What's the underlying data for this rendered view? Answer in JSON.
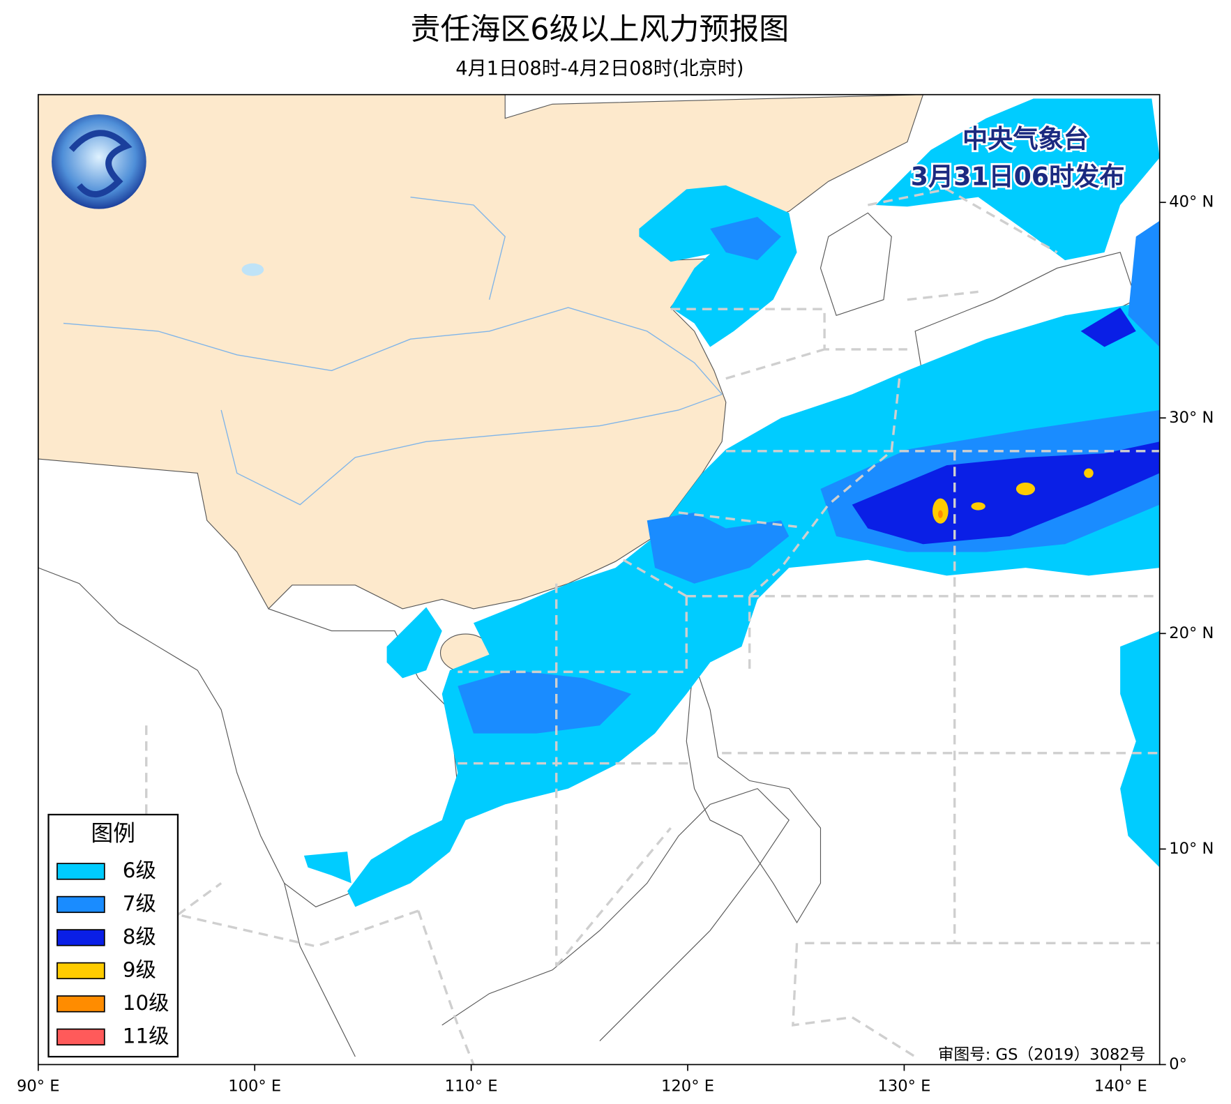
{
  "header": {
    "title": "责任海区6级以上风力预报图",
    "subtitle": "4月1日08时-4月2日08时(北京时)"
  },
  "publisher": {
    "name": "中央气象台",
    "issued": "3月31日06时发布"
  },
  "map": {
    "xlim": [
      90,
      141.8
    ],
    "ylim": [
      0,
      45
    ],
    "xticks": [
      {
        "value": 90,
        "label": "90° E"
      },
      {
        "value": 100,
        "label": "100° E"
      },
      {
        "value": 110,
        "label": "110° E"
      },
      {
        "value": 120,
        "label": "120° E"
      },
      {
        "value": 130,
        "label": "130° E"
      },
      {
        "value": 140,
        "label": "140° E"
      }
    ],
    "yticks": [
      {
        "value": 0,
        "label": "0°"
      },
      {
        "value": 10,
        "label": "10° N"
      },
      {
        "value": 20,
        "label": "20° N"
      },
      {
        "value": 30,
        "label": "30° N"
      },
      {
        "value": 40,
        "label": "40° N"
      }
    ],
    "approval": "审图号: GS（2019）3082号"
  },
  "legend": {
    "title": "图例",
    "items": [
      {
        "label": "6级",
        "color": "#00ccff"
      },
      {
        "label": "7级",
        "color": "#1a8cff"
      },
      {
        "label": "8级",
        "color": "#0a1fe6"
      },
      {
        "label": "9级",
        "color": "#ffcc00"
      },
      {
        "label": "10级",
        "color": "#ff8c00"
      },
      {
        "label": "11级",
        "color": "#ff5a5a"
      }
    ]
  }
}
